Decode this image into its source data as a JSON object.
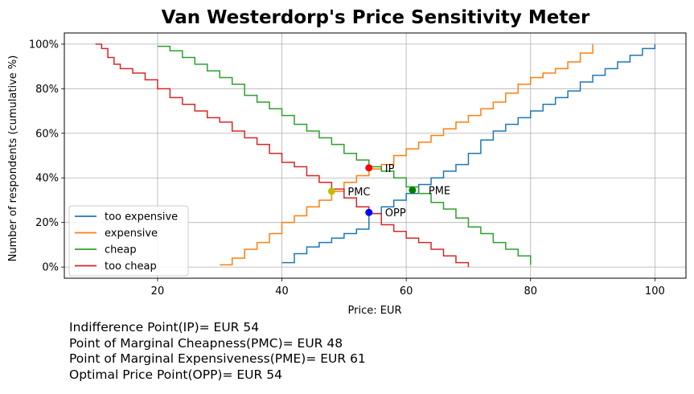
{
  "chart_data": {
    "type": "line",
    "title": "Van Westerdorp's Price Sensitivity Meter",
    "xlabel": "Price: EUR",
    "ylabel": "Number of respondents (cumulative %)",
    "xlim": [
      5,
      105
    ],
    "ylim": [
      -5,
      105
    ],
    "xticks": [
      20,
      40,
      60,
      80,
      100
    ],
    "yticks": [
      0,
      20,
      40,
      60,
      80,
      100
    ],
    "ytick_labels": [
      "0%",
      "20%",
      "40%",
      "60%",
      "80%",
      "100%"
    ],
    "grid": true,
    "legend_position": "lower-left",
    "series": [
      {
        "name": "too expensive",
        "color": "#1f77b4",
        "x": [
          40,
          42,
          44,
          46,
          48,
          50,
          52,
          54,
          56,
          58,
          60,
          62,
          64,
          66,
          68,
          70,
          72,
          74,
          76,
          78,
          80,
          82,
          84,
          86,
          88,
          90,
          92,
          94,
          96,
          98,
          100
        ],
        "y": [
          2,
          6,
          9,
          11,
          13,
          15,
          17,
          24,
          27,
          30,
          33,
          37,
          40,
          43,
          46,
          51,
          57,
          61,
          64,
          67,
          70,
          73,
          76,
          79,
          83,
          86,
          89,
          92,
          95,
          98,
          100
        ]
      },
      {
        "name": "expensive",
        "color": "#ff7f0e",
        "x": [
          30,
          32,
          34,
          36,
          38,
          40,
          42,
          44,
          46,
          48,
          50,
          52,
          54,
          56,
          58,
          60,
          62,
          64,
          66,
          68,
          70,
          72,
          74,
          76,
          78,
          80,
          82,
          84,
          86,
          88,
          90
        ],
        "y": [
          1,
          4,
          8,
          11,
          15,
          20,
          23,
          27,
          30,
          34,
          38,
          41,
          44,
          46,
          50,
          53,
          56,
          59,
          62,
          65,
          68,
          71,
          74,
          78,
          82,
          85,
          87,
          89,
          92,
          96,
          100
        ]
      },
      {
        "name": "cheap",
        "color": "#2ca02c",
        "x": [
          20,
          22,
          24,
          26,
          28,
          30,
          32,
          34,
          36,
          38,
          40,
          42,
          44,
          46,
          48,
          50,
          52,
          54,
          56,
          58,
          60,
          62,
          64,
          66,
          68,
          70,
          72,
          74,
          76,
          78,
          80
        ],
        "y": [
          99,
          97,
          94,
          91,
          88,
          85,
          82,
          77,
          74,
          71,
          68,
          64,
          61,
          58,
          55,
          51,
          48,
          45,
          43,
          40,
          36,
          33,
          29,
          26,
          22,
          18,
          15,
          11,
          8,
          5,
          1
        ]
      },
      {
        "name": "too cheap",
        "color": "#d62728",
        "x": [
          10,
          11,
          12,
          13,
          14,
          16,
          18,
          20,
          22,
          24,
          26,
          28,
          30,
          32,
          34,
          36,
          38,
          40,
          42,
          44,
          46,
          48,
          50,
          52,
          54,
          56,
          58,
          60,
          62,
          64,
          66,
          68,
          70
        ],
        "y": [
          100,
          98,
          94,
          91,
          89,
          87,
          84,
          80,
          76,
          73,
          70,
          67,
          65,
          61,
          58,
          55,
          51,
          47,
          45,
          41,
          38,
          35,
          31,
          27,
          24,
          19,
          16,
          13,
          11,
          8,
          5,
          2,
          0
        ]
      }
    ],
    "points": [
      {
        "label": "IP",
        "x": 54,
        "y": 44.5,
        "color": "#ff0000"
      },
      {
        "label": "PMC",
        "x": 48,
        "y": 34,
        "color": "#bfbf00"
      },
      {
        "label": "PME",
        "x": 61,
        "y": 34.5,
        "color": "#008000"
      },
      {
        "label": "OPP",
        "x": 54,
        "y": 24.5,
        "color": "#0000ff"
      }
    ]
  },
  "summary": {
    "ip": "Indifference Point(IP)= EUR 54",
    "pmc": "Point of Marginal Cheapness(PMC)= EUR 48",
    "pme": "Point of Marginal Expensiveness(PME)= EUR 61",
    "opp": "Optimal Price Point(OPP)= EUR 54"
  }
}
